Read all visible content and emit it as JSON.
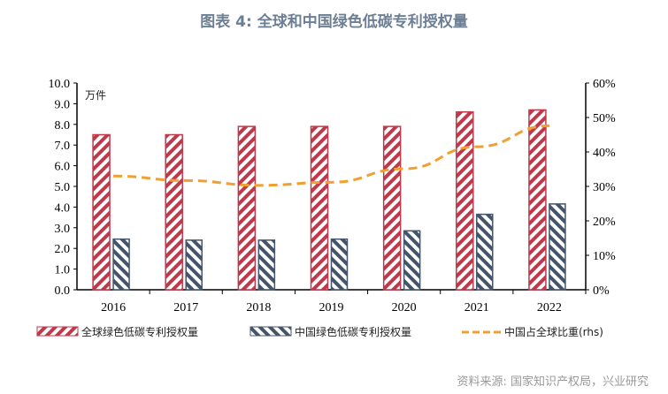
{
  "title": "图表 4: 全球和中国绿色低碳专利授权量",
  "source": "资料来源: 国家知识产权局，兴业研究",
  "chart_data": {
    "type": "bar",
    "title": "图表 4: 全球和中国绿色低碳专利授权量",
    "unit_label": "万件",
    "categories": [
      "2016",
      "2017",
      "2018",
      "2019",
      "2020",
      "2021",
      "2022"
    ],
    "left_axis": {
      "ylim": [
        0,
        10
      ],
      "ticks": [
        "0.0",
        "1.0",
        "2.0",
        "3.0",
        "4.0",
        "5.0",
        "6.0",
        "7.0",
        "8.0",
        "9.0",
        "10.0"
      ]
    },
    "right_axis": {
      "ylim": [
        0,
        60
      ],
      "ticks": [
        "0%",
        "10%",
        "20%",
        "30%",
        "40%",
        "50%",
        "60%"
      ]
    },
    "series": [
      {
        "name": "全球绿色低碳专利授权量",
        "type": "bar",
        "axis": "left",
        "color": "#c0394b",
        "values": [
          7.5,
          7.5,
          7.9,
          7.9,
          7.9,
          8.6,
          8.7
        ]
      },
      {
        "name": "中国绿色低碳专利授权量",
        "type": "bar",
        "axis": "left",
        "color": "#44546a",
        "values": [
          2.45,
          2.4,
          2.4,
          2.45,
          2.85,
          3.65,
          4.15
        ]
      },
      {
        "name": "中国占全球比重(rhs)",
        "type": "line",
        "axis": "right",
        "color": "#f0a030",
        "values": [
          33.0,
          31.7,
          30.3,
          31.2,
          35.1,
          41.5,
          47.6
        ]
      }
    ],
    "grid": false,
    "legend": "bottom"
  }
}
